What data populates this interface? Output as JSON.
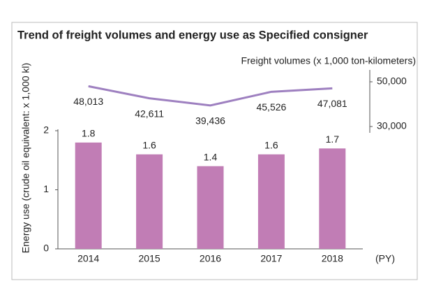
{
  "chart_data": {
    "type": "bar",
    "title": "Trend of freight volumes and energy use as Specified consigner",
    "y_label": "Energy use (crude oil equivalent: x 1,000 kl)",
    "y2_label": "Freight volumes (x 1,000 ton-kilometers)",
    "x_label": "(PY)",
    "categories": [
      "2014",
      "2015",
      "2016",
      "2017",
      "2018"
    ],
    "series": [
      {
        "type": "bar",
        "color": "#c17db5",
        "values": [
          1.8,
          1.6,
          1.4,
          1.6,
          1.7
        ]
      },
      {
        "type": "line",
        "axis": "y2",
        "color": "#9e80c0",
        "values": [
          48013,
          42611,
          39436,
          45526,
          47081
        ],
        "value_labels": [
          "48,013",
          "42,611",
          "39,436",
          "45,526",
          "47,081"
        ]
      }
    ],
    "ylim": [
      0,
      2
    ],
    "yticks": [
      0,
      1,
      2
    ],
    "y2lim": [
      30000,
      50000
    ],
    "y2ticks": [
      {
        "value": 30000,
        "label": "30,000"
      },
      {
        "value": 50000,
        "label": "50,000"
      }
    ]
  }
}
